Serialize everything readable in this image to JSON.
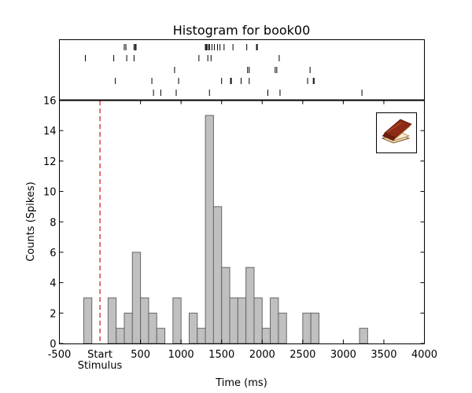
{
  "chart_data": {
    "type": "bar",
    "title": "Histogram for book00",
    "xlabel": "Time (ms)",
    "ylabel": "Counts (Spikes)",
    "xlim": [
      -500,
      4000
    ],
    "ylim": [
      0,
      16
    ],
    "x_ticks": [
      -500,
      500,
      1000,
      1500,
      2000,
      2500,
      3000,
      3500,
      4000
    ],
    "y_ticks": [
      0,
      2,
      4,
      6,
      8,
      10,
      12,
      14,
      16
    ],
    "stimulus_marker": {
      "x": 0,
      "label_top": "Start",
      "label_bottom": "Stimulus",
      "color": "#dd2222"
    },
    "bin_width": 100,
    "bin_starts": [
      -200,
      -100,
      0,
      100,
      200,
      300,
      400,
      500,
      600,
      700,
      800,
      900,
      1000,
      1100,
      1200,
      1300,
      1400,
      1500,
      1600,
      1700,
      1800,
      1900,
      2000,
      2100,
      2200,
      2300,
      2400,
      2500,
      2600,
      2700,
      2800,
      2900,
      3000,
      3100,
      3200,
      3300,
      3400,
      3500,
      3600,
      3700,
      3800,
      3900
    ],
    "values": [
      3,
      0,
      0,
      3,
      1,
      2,
      6,
      3,
      2,
      1,
      0,
      3,
      0,
      2,
      1,
      15,
      9,
      5,
      3,
      3,
      5,
      3,
      1,
      3,
      2,
      0,
      0,
      2,
      2,
      0,
      0,
      0,
      0,
      0,
      1,
      0,
      0,
      0,
      0,
      0,
      0,
      0
    ],
    "bar_fill": "#c0c0c0",
    "bar_edge": "#666666",
    "raster_trials": [
      [
        300,
        320,
        420,
        435,
        445,
        1300,
        1310,
        1320,
        1340,
        1350,
        1380,
        1410,
        1450,
        1480,
        1530,
        1640,
        1810,
        1930,
        1940
      ],
      [
        -180,
        170,
        330,
        420,
        1220,
        1330,
        1370,
        2210
      ],
      [
        920,
        1820,
        1840,
        2160,
        2180,
        2590
      ],
      [
        190,
        640,
        970,
        1500,
        1610,
        1620,
        1740,
        1840,
        2560,
        2630,
        2640
      ],
      [
        660,
        750,
        940,
        1350,
        2070,
        2220,
        3230
      ]
    ],
    "inset_icon": "book-icon"
  }
}
